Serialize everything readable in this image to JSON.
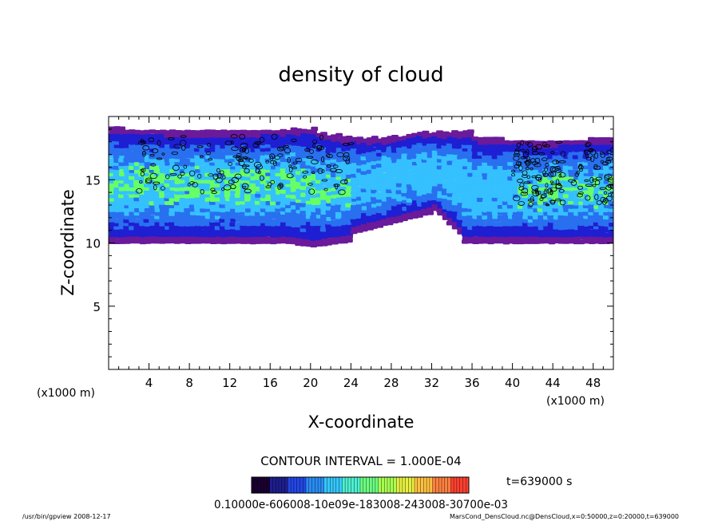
{
  "chart_data": {
    "type": "heatmap",
    "title": "density of cloud",
    "xlabel": "X-coordinate",
    "ylabel": "Z-coordinate",
    "x_unit": "(x1000 m)",
    "y_unit": "(x1000 m)",
    "xlim": [
      0,
      50
    ],
    "ylim": [
      0,
      20
    ],
    "x_ticks": [
      4,
      8,
      12,
      16,
      20,
      24,
      28,
      32,
      36,
      40,
      44,
      48
    ],
    "y_ticks": [
      5,
      10,
      15
    ],
    "contour_interval": "CONTOUR INTERVAL = 1.000E-04",
    "time_label": "t=639000 s",
    "colorbar_labels": "0.10000e-606008-10e09e-183008-243008-30700e-03",
    "colorbar_colors": [
      "#1a0030",
      "#1e1e90",
      "#2346e6",
      "#2a8cf5",
      "#35c8ff",
      "#4cf0d0",
      "#6cff80",
      "#a8ff50",
      "#e6f040",
      "#ffc040",
      "#ff8040",
      "#ff4030"
    ],
    "cloud_colors": {
      "edge": "#6a1a9a",
      "low": "#1e1ed2",
      "mid": "#2870f0",
      "high": "#35c0ff",
      "peak": "#66ff66"
    },
    "cloud_region": {
      "bottom_km": 10,
      "top_km": 19,
      "dip_x_km": [
        23,
        35
      ],
      "dip_bottom_km": 11
    }
  },
  "footer": {
    "left": "/usr/bin/gpview   2008-12-17",
    "right": "MarsCond_DensCloud.nc@DensCloud,x=0:50000,z=0:20000,t=639000"
  }
}
